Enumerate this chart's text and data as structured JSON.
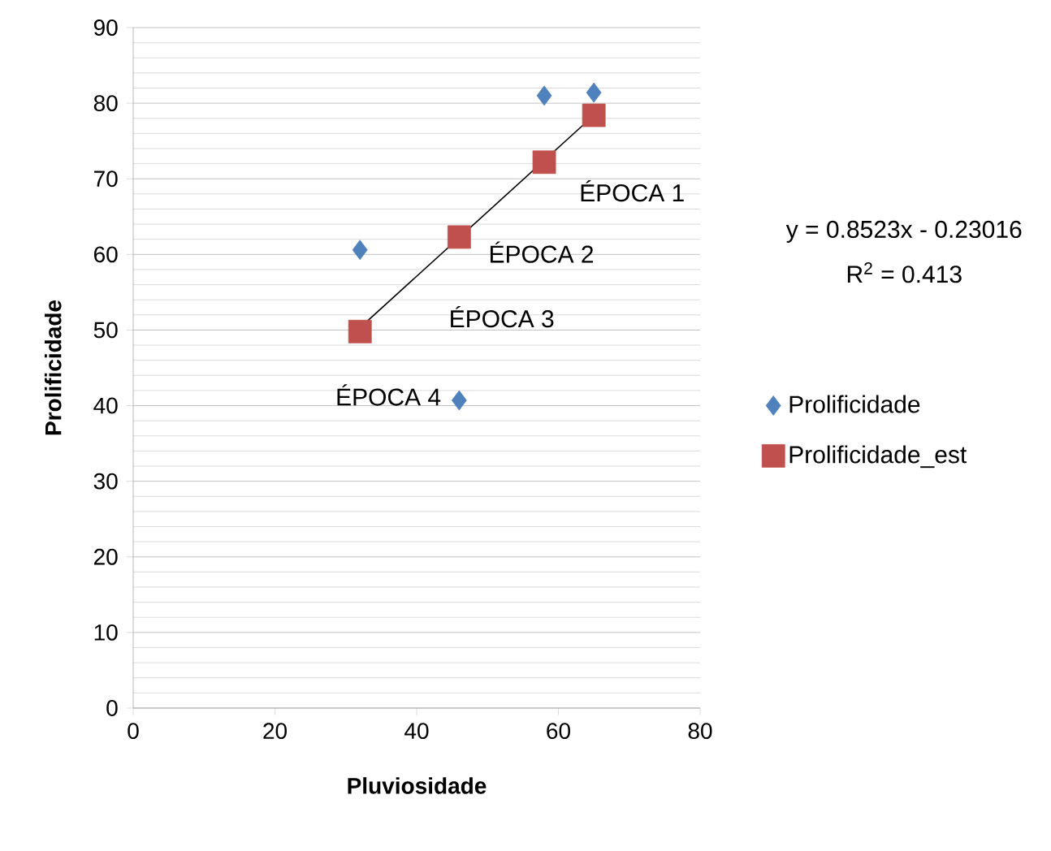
{
  "chart_data": {
    "type": "scatter",
    "xlabel": "Pluviosidade",
    "ylabel": "Prolificidade",
    "xlim": [
      0,
      80
    ],
    "xticks": [
      0,
      20,
      40,
      60,
      80
    ],
    "ylim": [
      0,
      90
    ],
    "yticks": [
      0,
      10,
      20,
      30,
      40,
      50,
      60,
      70,
      80,
      90
    ],
    "grid": "y",
    "legend": "right",
    "series": [
      {
        "name": "Prolificidade",
        "color": "#4f81bd",
        "marker": "diamond",
        "x": [
          32,
          46,
          58,
          65
        ],
        "values": [
          60.6,
          40.7,
          81,
          81.4
        ]
      },
      {
        "name": "Prolificidade_est",
        "color": "#c0504d",
        "marker": "square",
        "x": [
          32,
          46,
          58,
          65
        ],
        "values": [
          49.8,
          62.3,
          72.2,
          78.4
        ]
      },
      {
        "type": "line",
        "color": "#000000",
        "marker": "none",
        "x": [
          32,
          65
        ],
        "values": [
          50.3,
          78.4
        ]
      }
    ],
    "annotations": [
      "ÉPOCA 1",
      "ÉPOCA 2",
      "ÉPOCA 3",
      "ÉPOCA 4",
      "y = 0.8523x - 0.23016",
      "R$^{2}$ = 0.413"
    ]
  }
}
